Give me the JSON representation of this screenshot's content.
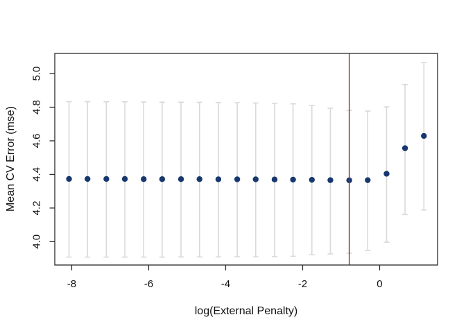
{
  "chart_data": {
    "type": "scatter",
    "title": "",
    "xlabel": "log(External Penalty)",
    "ylabel": "Mean CV Error (mse)",
    "xlim": [
      -8.44,
      1.505
    ],
    "ylim": [
      3.861,
      5.12
    ],
    "grid": false,
    "legend": "none",
    "x_ticks": [
      {
        "value": -8,
        "label": "-8"
      },
      {
        "value": -6,
        "label": "-6"
      },
      {
        "value": -4,
        "label": "-4"
      },
      {
        "value": -2,
        "label": "-2"
      },
      {
        "value": 0,
        "label": "0"
      }
    ],
    "y_ticks": [
      {
        "value": 4.0,
        "label": "4.0"
      },
      {
        "value": 4.2,
        "label": "4.2"
      },
      {
        "value": 4.4,
        "label": "4.4"
      },
      {
        "value": 4.6,
        "label": "4.6"
      },
      {
        "value": 4.8,
        "label": "4.8"
      },
      {
        "value": 5.0,
        "label": "5.0"
      }
    ],
    "vline_x": -0.79,
    "points": [
      {
        "x": -8.07,
        "y": 4.373,
        "lo": 3.908,
        "hi": 4.833
      },
      {
        "x": -7.59,
        "y": 4.373,
        "lo": 3.908,
        "hi": 4.833
      },
      {
        "x": -7.1,
        "y": 4.373,
        "lo": 3.908,
        "hi": 4.832
      },
      {
        "x": -6.62,
        "y": 4.373,
        "lo": 3.908,
        "hi": 4.832
      },
      {
        "x": -6.13,
        "y": 4.372,
        "lo": 3.908,
        "hi": 4.831
      },
      {
        "x": -5.65,
        "y": 4.372,
        "lo": 3.908,
        "hi": 4.83
      },
      {
        "x": -5.16,
        "y": 4.372,
        "lo": 3.909,
        "hi": 4.83
      },
      {
        "x": -4.68,
        "y": 4.372,
        "lo": 3.909,
        "hi": 4.829
      },
      {
        "x": -4.19,
        "y": 4.371,
        "lo": 3.909,
        "hi": 4.828
      },
      {
        "x": -3.7,
        "y": 4.371,
        "lo": 3.91,
        "hi": 4.827
      },
      {
        "x": -3.22,
        "y": 4.371,
        "lo": 3.91,
        "hi": 4.825
      },
      {
        "x": -2.73,
        "y": 4.37,
        "lo": 3.911,
        "hi": 4.823
      },
      {
        "x": -2.25,
        "y": 4.369,
        "lo": 3.913,
        "hi": 4.82
      },
      {
        "x": -1.76,
        "y": 4.368,
        "lo": 3.922,
        "hi": 4.811
      },
      {
        "x": -1.28,
        "y": 4.366,
        "lo": 3.927,
        "hi": 4.794
      },
      {
        "x": -0.79,
        "y": 4.365,
        "lo": 3.931,
        "hi": 4.781
      },
      {
        "x": -0.31,
        "y": 4.366,
        "lo": 3.947,
        "hi": 4.777
      },
      {
        "x": 0.18,
        "y": 4.404,
        "lo": 3.997,
        "hi": 4.802
      },
      {
        "x": 0.66,
        "y": 4.556,
        "lo": 4.161,
        "hi": 4.935
      },
      {
        "x": 1.15,
        "y": 4.629,
        "lo": 4.188,
        "hi": 5.066
      }
    ],
    "colors": {
      "point": "#17376e",
      "errorbar": "#d9d9d9",
      "vline": "#b22222",
      "axis": "#2a2a2a",
      "background": "#ffffff"
    }
  }
}
